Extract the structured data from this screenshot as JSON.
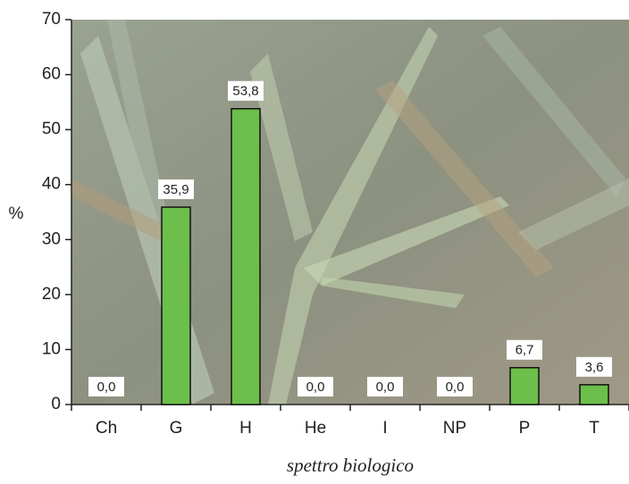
{
  "chart_data": {
    "type": "bar",
    "x_label": "spettro biologico",
    "y_label": "%",
    "categories": [
      "Ch",
      "G",
      "H",
      "He",
      "I",
      "NP",
      "P",
      "T"
    ],
    "values": [
      0,
      35.9,
      53.8,
      0,
      0,
      0,
      6.7,
      3.6
    ],
    "value_labels": [
      "0,0",
      "35,9",
      "53,8",
      "0,0",
      "0,0",
      "0,0",
      "6,7",
      "3,6"
    ],
    "color": "#6cbf4a",
    "ylim": [
      0,
      70
    ],
    "yticks": [
      0,
      10,
      20,
      30,
      40,
      50,
      60,
      70
    ]
  }
}
